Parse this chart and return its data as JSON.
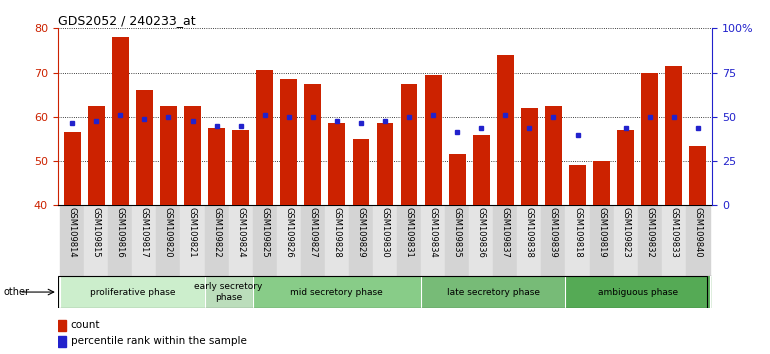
{
  "title": "GDS2052 / 240233_at",
  "samples": [
    "GSM109814",
    "GSM109815",
    "GSM109816",
    "GSM109817",
    "GSM109820",
    "GSM109821",
    "GSM109822",
    "GSM109824",
    "GSM109825",
    "GSM109826",
    "GSM109827",
    "GSM109828",
    "GSM109829",
    "GSM109830",
    "GSM109831",
    "GSM109834",
    "GSM109835",
    "GSM109836",
    "GSM109837",
    "GSM109838",
    "GSM109839",
    "GSM109818",
    "GSM109819",
    "GSM109823",
    "GSM109832",
    "GSM109833",
    "GSM109840"
  ],
  "counts": [
    56.5,
    62.5,
    78.0,
    66.0,
    62.5,
    62.5,
    57.5,
    57.0,
    70.5,
    68.5,
    67.5,
    58.5,
    55.0,
    58.5,
    67.5,
    69.5,
    51.5,
    56.0,
    74.0,
    62.0,
    62.5,
    49.0,
    50.0,
    57.0,
    70.0,
    71.5,
    53.5
  ],
  "percentiles": [
    58.5,
    59.0,
    60.5,
    59.5,
    60.0,
    59.0,
    58.0,
    58.0,
    60.5,
    60.0,
    60.0,
    59.0,
    58.5,
    59.0,
    60.0,
    60.5,
    56.5,
    57.5,
    60.5,
    57.5,
    60.0,
    56.0,
    null,
    57.5,
    60.0,
    60.0,
    57.5
  ],
  "bar_color": "#cc2200",
  "dot_color": "#2222cc",
  "phases": [
    {
      "label": "proliferative phase",
      "start": 0,
      "end": 5,
      "color": "#cceecc"
    },
    {
      "label": "early secretory\nphase",
      "start": 6,
      "end": 7,
      "color": "#bbddbb"
    },
    {
      "label": "mid secretory phase",
      "start": 8,
      "end": 14,
      "color": "#88cc88"
    },
    {
      "label": "late secretory phase",
      "start": 15,
      "end": 20,
      "color": "#77bb77"
    },
    {
      "label": "ambiguous phase",
      "start": 21,
      "end": 26,
      "color": "#55aa55"
    }
  ],
  "ylim_left": [
    40,
    80
  ],
  "ylim_right": [
    0,
    100
  ],
  "yticks_left": [
    40,
    50,
    60,
    70,
    80
  ],
  "yticks_right": [
    0,
    25,
    50,
    75,
    100
  ],
  "ytick_labels_right": [
    "0",
    "25",
    "50",
    "75",
    "100%"
  ],
  "left_axis_color": "#cc2200",
  "right_axis_color": "#2222cc"
}
